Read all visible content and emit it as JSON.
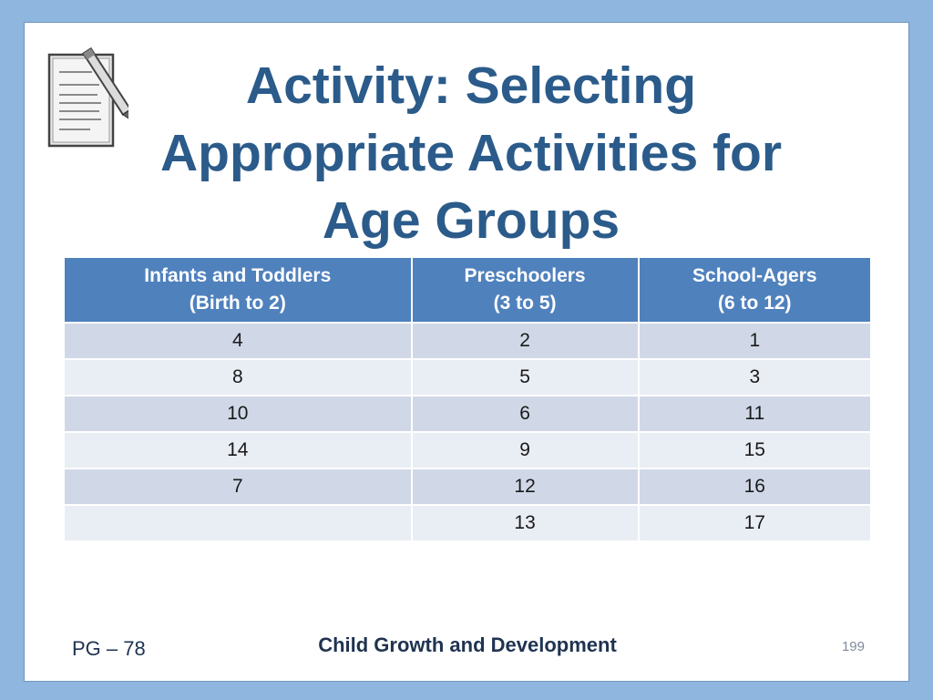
{
  "slide": {
    "title_lines": [
      "Activity: Selecting",
      "Appropriate Activities for",
      "Age Groups"
    ],
    "icon": "notepad-with-pen-icon",
    "table": {
      "headers": [
        {
          "line1": "Infants and Toddlers",
          "line2": "(Birth to 2)"
        },
        {
          "line1": "Preschoolers",
          "line2": "(3 to 5)"
        },
        {
          "line1": "School-Agers",
          "line2": "(6 to 12)"
        }
      ],
      "rows": [
        [
          "4",
          "2",
          "1"
        ],
        [
          "8",
          "5",
          "3"
        ],
        [
          "10",
          "6",
          "11"
        ],
        [
          "14",
          "9",
          "15"
        ],
        [
          "7",
          "12",
          "16"
        ],
        [
          "",
          "13",
          "17"
        ]
      ]
    },
    "footer": {
      "left": "PG – 78",
      "center": "Child Growth and Development",
      "page_number": "199"
    },
    "colors": {
      "background": "#8fb6de",
      "title": "#2b5b8a",
      "header_fill": "#4f81bd",
      "row_fill": "#d0d8e8",
      "row_fill_alt": "#e9edf4"
    }
  }
}
